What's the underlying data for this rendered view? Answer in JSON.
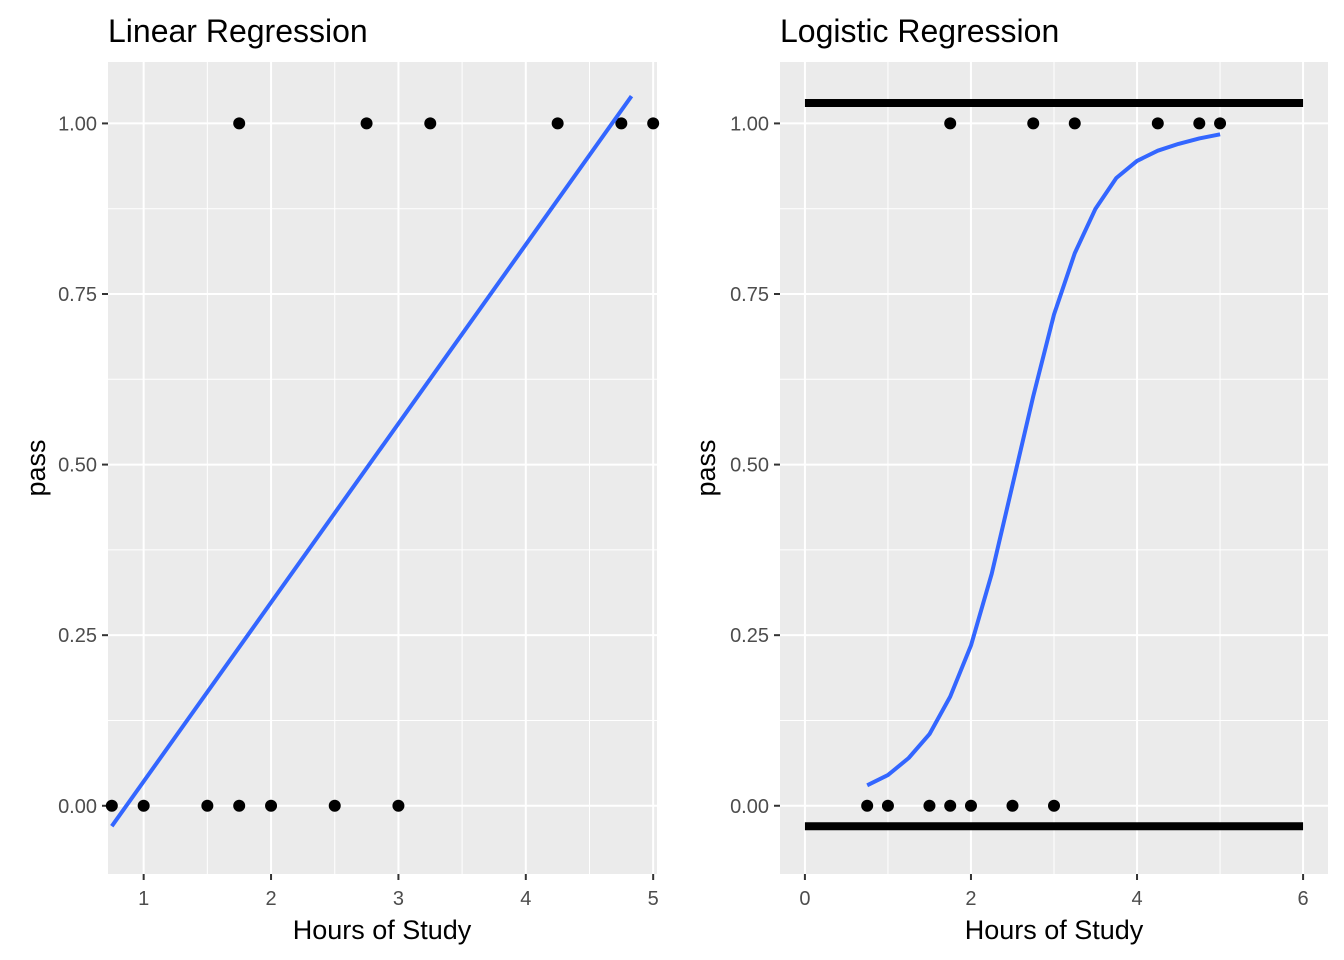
{
  "chart_data": [
    {
      "type": "scatter",
      "title": "Linear Regression",
      "xlabel": "Hours of Study",
      "ylabel": "pass",
      "xlim": [
        0.72,
        5.03
      ],
      "ylim": [
        -0.1,
        1.09
      ],
      "xticks": [
        1,
        2,
        3,
        4,
        5
      ],
      "xtick_labels": [
        "1",
        "2",
        "3",
        "4",
        "5"
      ],
      "yticks": [
        0,
        0.25,
        0.5,
        0.75,
        1
      ],
      "ytick_labels": [
        "0.00",
        "0.25",
        "0.50",
        "0.75",
        "1.00"
      ],
      "grid": true,
      "points": {
        "x": [
          0.75,
          1.0,
          1.5,
          1.75,
          2.0,
          2.5,
          3.0,
          1.75,
          2.75,
          3.25,
          4.25,
          4.75,
          5.0
        ],
        "y": [
          0,
          0,
          0,
          0,
          0,
          0,
          0,
          1,
          1,
          1,
          1,
          1,
          1
        ]
      },
      "fit_line": {
        "type": "line",
        "x": [
          0.75,
          4.83
        ],
        "y": [
          -0.03,
          1.04
        ]
      },
      "colors": {
        "points": "#000000",
        "fit": "#3366FF",
        "panel": "#EBEBEB",
        "grid": "#FFFFFF"
      }
    },
    {
      "type": "scatter",
      "title": "Logistic Regression",
      "xlabel": "Hours of Study",
      "ylabel": "pass",
      "xlim": [
        -0.3,
        6.3
      ],
      "ylim": [
        -0.1,
        1.09
      ],
      "xticks": [
        0,
        2,
        4,
        6
      ],
      "xtick_labels": [
        "0",
        "2",
        "4",
        "6"
      ],
      "yticks": [
        0,
        0.25,
        0.5,
        0.75,
        1
      ],
      "ytick_labels": [
        "0.00",
        "0.25",
        "0.50",
        "0.75",
        "1.00"
      ],
      "grid": true,
      "points": {
        "x": [
          0.75,
          1.0,
          1.5,
          1.75,
          2.0,
          2.5,
          3.0,
          1.75,
          2.75,
          3.25,
          4.25,
          4.75,
          5.0
        ],
        "y": [
          0,
          0,
          0,
          0,
          0,
          0,
          0,
          1,
          1,
          1,
          1,
          1,
          1
        ]
      },
      "fit_curve": {
        "type": "line",
        "x": [
          0.75,
          1.0,
          1.25,
          1.5,
          1.75,
          2.0,
          2.25,
          2.5,
          2.75,
          3.0,
          3.25,
          3.5,
          3.75,
          4.0,
          4.25,
          4.5,
          4.75,
          5.0
        ],
        "y": [
          0.03,
          0.045,
          0.07,
          0.105,
          0.16,
          0.235,
          0.34,
          0.47,
          0.6,
          0.72,
          0.81,
          0.875,
          0.92,
          0.945,
          0.96,
          0.97,
          0.978,
          0.984
        ]
      },
      "hlines": {
        "y": [
          -0.03,
          1.03
        ],
        "x": [
          0,
          6
        ]
      },
      "colors": {
        "points": "#000000",
        "fit": "#3366FF",
        "hlines": "#000000",
        "panel": "#EBEBEB",
        "grid": "#FFFFFF"
      }
    }
  ]
}
